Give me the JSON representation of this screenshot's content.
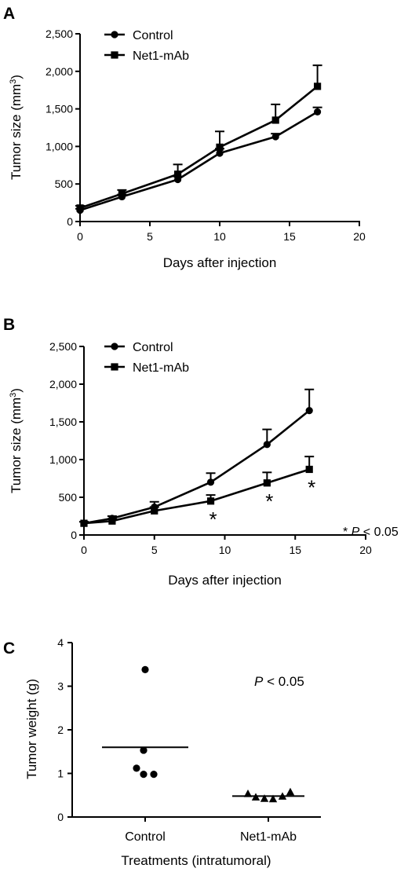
{
  "chart_data": [
    {
      "panel": "A",
      "type": "line",
      "title": "",
      "xlabel": "Days after injection",
      "ylabel": "Tumor size (mm³)",
      "ylabel_main": "Tumor size (mm",
      "ylabel_sup": "3",
      "ylabel_close": ")",
      "xlim": [
        0,
        20
      ],
      "ylim": [
        0,
        2500
      ],
      "xticks": [
        0,
        5,
        10,
        15,
        20
      ],
      "xtick_labels": [
        "0",
        "5",
        "10",
        "15",
        "20"
      ],
      "yticks": [
        0,
        500,
        1000,
        1500,
        2000,
        2500
      ],
      "ytick_labels": [
        "0",
        "500",
        "1,000",
        "1,500",
        "2,000",
        "2,500"
      ],
      "grid": false,
      "legend": "top-left",
      "series": [
        {
          "name": "Control",
          "marker": "circle",
          "x": [
            0,
            3,
            7,
            10,
            14,
            17
          ],
          "y": [
            150,
            330,
            560,
            910,
            1130,
            1460
          ],
          "err": [
            20,
            30,
            40,
            60,
            40,
            60
          ]
        },
        {
          "name": "Net1-mAb",
          "marker": "square",
          "x": [
            0,
            3,
            7,
            10,
            14,
            17
          ],
          "y": [
            180,
            370,
            630,
            990,
            1350,
            1800
          ],
          "err": [
            30,
            50,
            130,
            210,
            210,
            280
          ]
        }
      ],
      "annotations": []
    },
    {
      "panel": "B",
      "type": "line",
      "title": "",
      "xlabel": "Days after injection",
      "ylabel": "Tumor size (mm³)",
      "ylabel_main": "Tumor size (mm",
      "ylabel_sup": "3",
      "ylabel_close": ")",
      "xlim": [
        0,
        20
      ],
      "ylim": [
        0,
        2500
      ],
      "xticks": [
        0,
        5,
        10,
        15,
        20
      ],
      "xtick_labels": [
        "0",
        "5",
        "10",
        "15",
        "20"
      ],
      "yticks": [
        0,
        500,
        1000,
        1500,
        2000,
        2500
      ],
      "ytick_labels": [
        "0",
        "500",
        "1,000",
        "1,500",
        "2,000",
        "2,500"
      ],
      "grid": false,
      "legend": "top-left",
      "series": [
        {
          "name": "Control",
          "marker": "circle",
          "x": [
            0,
            2,
            5,
            9,
            13,
            16
          ],
          "y": [
            155,
            220,
            370,
            700,
            1200,
            1650
          ],
          "err": [
            20,
            30,
            70,
            120,
            200,
            280
          ]
        },
        {
          "name": "Net1-mAb",
          "marker": "square",
          "x": [
            0,
            2,
            5,
            9,
            13,
            16
          ],
          "y": [
            155,
            185,
            320,
            450,
            690,
            870
          ],
          "err": [
            20,
            30,
            50,
            80,
            140,
            170
          ]
        }
      ],
      "significance_marks": [
        {
          "x": 9,
          "label": "*"
        },
        {
          "x": 13,
          "label": "*"
        },
        {
          "x": 16,
          "label": "*"
        }
      ],
      "annotation": {
        "prefix": "* ",
        "italic": "P",
        "rest": " < 0.05"
      }
    },
    {
      "panel": "C",
      "type": "scatter",
      "title": "",
      "xlabel": "Treatments (intratumoral)",
      "ylabel": "Tumor weight (g)",
      "categories": [
        "Control",
        "Net1-mAb"
      ],
      "ylim": [
        0,
        4
      ],
      "yticks": [
        0,
        1,
        2,
        3,
        4
      ],
      "ytick_labels": [
        "0",
        "1",
        "2",
        "3",
        "4"
      ],
      "grid": false,
      "series": [
        {
          "name": "Control",
          "marker": "circle",
          "values": [
            3.38,
            1.53,
            1.12,
            0.98,
            0.98
          ],
          "mean": 1.6
        },
        {
          "name": "Net1-mAb",
          "marker": "triangle",
          "values": [
            0.53,
            0.45,
            0.42,
            0.41,
            0.47,
            0.57
          ],
          "mean": 0.48
        }
      ],
      "annotation": {
        "prefix": "",
        "italic": "P",
        "rest": " < 0.05"
      }
    }
  ]
}
